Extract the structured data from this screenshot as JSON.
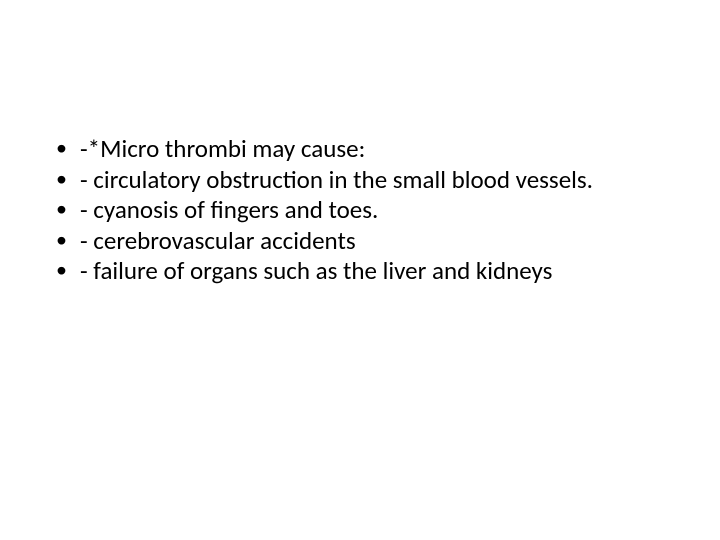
{
  "slide": {
    "bullets": [
      "-*Micro thrombi may cause:",
      "- circulatory obstruction in the small blood vessels.",
      "- cyanosis of fingers and toes.",
      "-  cerebrovascular accidents",
      "- failure of organs such as the liver and kidneys"
    ],
    "text_color": "#000000",
    "background_color": "#ffffff",
    "font_size_pt": 25,
    "font_family": "Calibri"
  }
}
